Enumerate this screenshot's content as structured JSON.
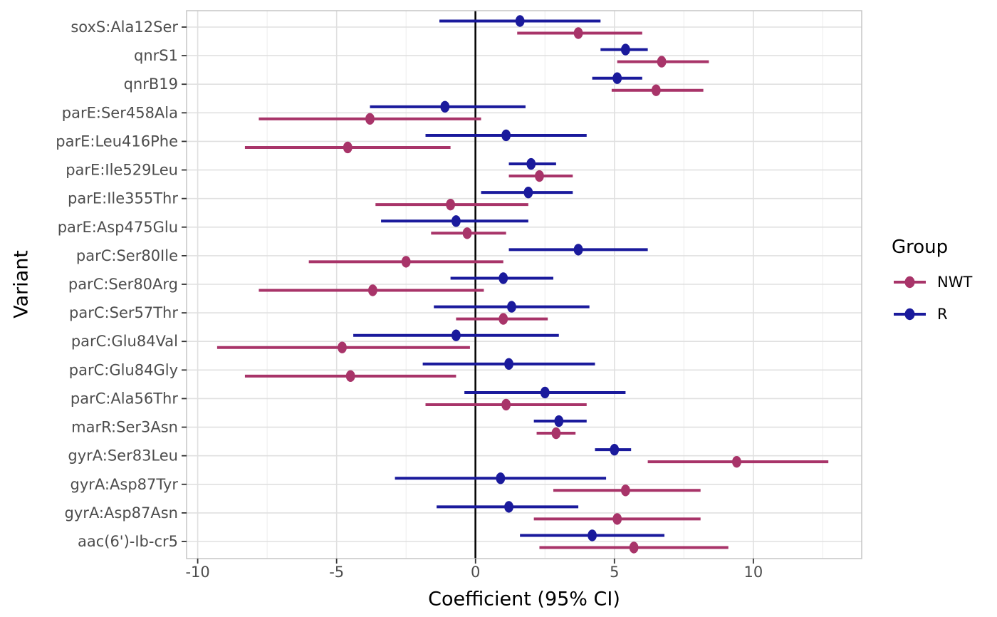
{
  "figure": {
    "x_axis_title": "Coefficient (95% CI)",
    "y_axis_title": "Variant"
  },
  "chart_data": {
    "type": "scatter",
    "subtype": "forest-plot-points-with-95ci-errorbars",
    "title": "",
    "xlabel": "Coefficient (95% CI)",
    "ylabel": "Variant",
    "xlim": [
      -10.4,
      13.9
    ],
    "xticks": [
      "-10",
      "-5",
      "0",
      "5",
      "10"
    ],
    "xtick_values": [
      -10,
      -5,
      0,
      5,
      10
    ],
    "x_minor_gridlines": [
      -7.5,
      -2.5,
      2.5,
      7.5,
      12.5
    ],
    "zero_reference_line": 0,
    "grid": true,
    "legend_position": "right",
    "legend_title": "Group",
    "categories": [
      "soxS:Ala12Ser",
      "qnrS1",
      "qnrB19",
      "parE:Ser458Ala",
      "parE:Leu416Phe",
      "parE:Ile529Leu",
      "parE:Ile355Thr",
      "parE:Asp475Glu",
      "parC:Ser80Ile",
      "parC:Ser80Arg",
      "parC:Ser57Thr",
      "parC:Glu84Val",
      "parC:Glu84Gly",
      "parC:Ala56Thr",
      "marR:Ser3Asn",
      "gyrA:Ser83Leu",
      "gyrA:Asp87Tyr",
      "gyrA:Asp87Asn",
      "aac(6')-Ib-cr5"
    ],
    "series": [
      {
        "name": "NWT",
        "color": "#A83469",
        "band_position": "lower",
        "points": [
          {
            "est": 3.7,
            "lo": 1.5,
            "hi": 6.0
          },
          {
            "est": 6.7,
            "lo": 5.1,
            "hi": 8.4
          },
          {
            "est": 6.5,
            "lo": 4.9,
            "hi": 8.2
          },
          {
            "est": -3.8,
            "lo": -7.8,
            "hi": 0.2
          },
          {
            "est": -4.6,
            "lo": -8.3,
            "hi": -0.9
          },
          {
            "est": 2.3,
            "lo": 1.2,
            "hi": 3.5
          },
          {
            "est": -0.9,
            "lo": -3.6,
            "hi": 1.9
          },
          {
            "est": -0.3,
            "lo": -1.6,
            "hi": 1.1
          },
          {
            "est": -2.5,
            "lo": -6.0,
            "hi": 1.0
          },
          {
            "est": -3.7,
            "lo": -7.8,
            "hi": 0.3
          },
          {
            "est": 1.0,
            "lo": -0.7,
            "hi": 2.6
          },
          {
            "est": -4.8,
            "lo": -9.3,
            "hi": -0.2
          },
          {
            "est": -4.5,
            "lo": -8.3,
            "hi": -0.7
          },
          {
            "est": 1.1,
            "lo": -1.8,
            "hi": 4.0
          },
          {
            "est": 2.9,
            "lo": 2.2,
            "hi": 3.6
          },
          {
            "est": 9.4,
            "lo": 6.2,
            "hi": 12.7
          },
          {
            "est": 5.4,
            "lo": 2.8,
            "hi": 8.1
          },
          {
            "est": 5.1,
            "lo": 2.1,
            "hi": 8.1
          },
          {
            "est": 5.7,
            "lo": 2.3,
            "hi": 9.1
          }
        ]
      },
      {
        "name": "R",
        "color": "#1A1A9C",
        "band_position": "upper",
        "points": [
          {
            "est": 1.6,
            "lo": -1.3,
            "hi": 4.5
          },
          {
            "est": 5.4,
            "lo": 4.5,
            "hi": 6.2
          },
          {
            "est": 5.1,
            "lo": 4.2,
            "hi": 6.0
          },
          {
            "est": -1.1,
            "lo": -3.8,
            "hi": 1.8
          },
          {
            "est": 1.1,
            "lo": -1.8,
            "hi": 4.0
          },
          {
            "est": 2.0,
            "lo": 1.2,
            "hi": 2.9
          },
          {
            "est": 1.9,
            "lo": 0.2,
            "hi": 3.5
          },
          {
            "est": -0.7,
            "lo": -3.4,
            "hi": 1.9
          },
          {
            "est": 3.7,
            "lo": 1.2,
            "hi": 6.2
          },
          {
            "est": 1.0,
            "lo": -0.9,
            "hi": 2.8
          },
          {
            "est": 1.3,
            "lo": -1.5,
            "hi": 4.1
          },
          {
            "est": -0.7,
            "lo": -4.4,
            "hi": 3.0
          },
          {
            "est": 1.2,
            "lo": -1.9,
            "hi": 4.3
          },
          {
            "est": 2.5,
            "lo": -0.4,
            "hi": 5.4
          },
          {
            "est": 3.0,
            "lo": 2.1,
            "hi": 4.0
          },
          {
            "est": 5.0,
            "lo": 4.3,
            "hi": 5.6
          },
          {
            "est": 0.9,
            "lo": -2.9,
            "hi": 4.7
          },
          {
            "est": 1.2,
            "lo": -1.4,
            "hi": 3.7
          },
          {
            "est": 4.2,
            "lo": 1.6,
            "hi": 6.8
          }
        ]
      }
    ],
    "colors": {
      "nwt": "#A83469",
      "r": "#1A1A9C",
      "zero_line": "#000000",
      "major_grid": "#e0e0e0",
      "minor_grid": "#eeeeee",
      "panel_border": "#c6c6c6",
      "axis_text": "#4d4d4d",
      "tick_mark": "#333333"
    }
  }
}
